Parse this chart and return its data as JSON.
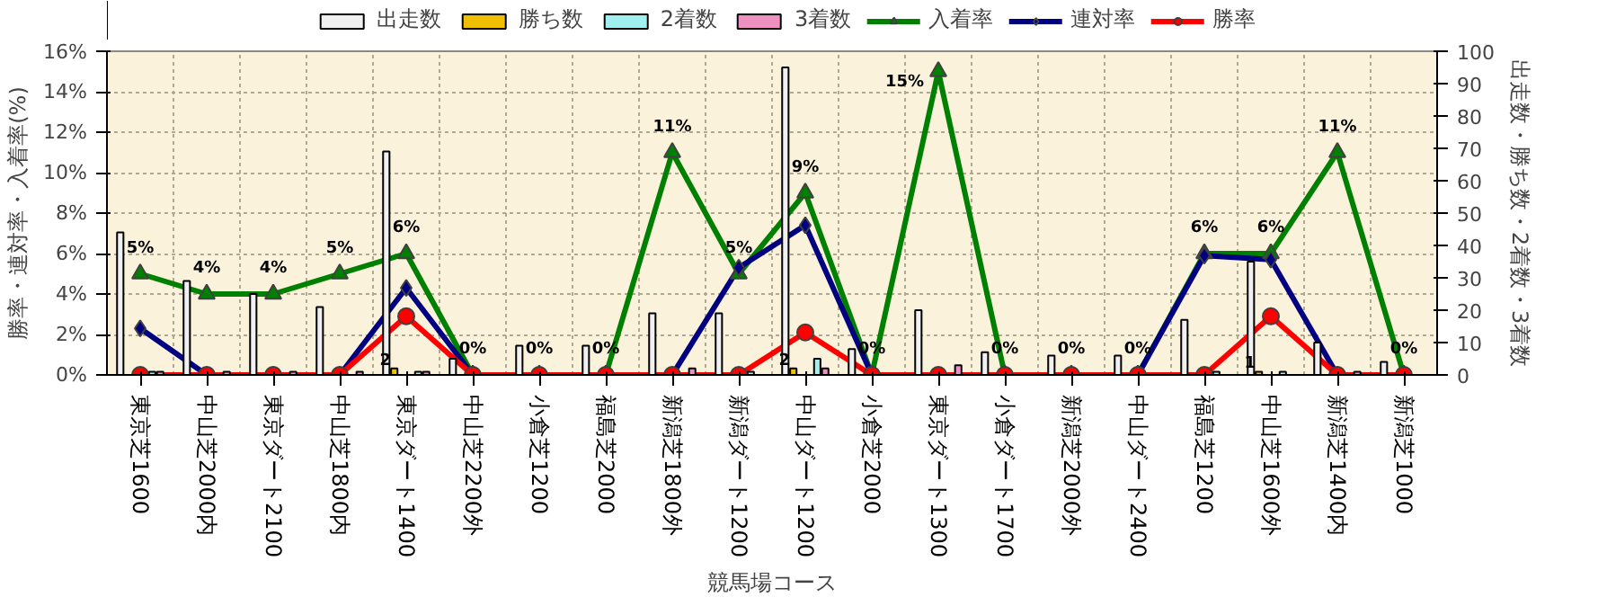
{
  "chart_data": {
    "type": "bar",
    "xlabel": "競馬場コース",
    "ylabel": "勝率・連対率・入着率(%)",
    "y2label": "出走数・勝ち数・2着数・3着数",
    "categories": [
      "東京芝1600",
      "中山芝2000内",
      "東京ダート2100",
      "中山芝1800内",
      "東京ダート1400",
      "中山芝2200外",
      "小倉芝1200",
      "福島芝2000",
      "新潟芝1800外",
      "新潟ダート1200",
      "中山ダート1200",
      "小倉芝2000",
      "東京ダート1300",
      "小倉ダート1700",
      "新潟芝2000外",
      "中山ダート2400",
      "福島芝1200",
      "中山芝1600外",
      "新潟芝1400内",
      "新潟芝1000"
    ],
    "series": [
      {
        "name": "出走数",
        "axis": "y2",
        "color": "#f0f0f0",
        "values": [
          44,
          29,
          25,
          21,
          69,
          5,
          9,
          9,
          19,
          19,
          95,
          8,
          20,
          7,
          6,
          6,
          17,
          35,
          10,
          4
        ]
      },
      {
        "name": "勝ち数",
        "axis": "y2",
        "color": "#f0c000",
        "values": [
          0,
          0,
          0,
          0,
          2,
          0,
          0,
          0,
          0,
          0,
          2,
          0,
          0,
          0,
          0,
          0,
          0,
          1,
          0,
          0
        ],
        "value_labels": [
          null,
          null,
          null,
          null,
          "2",
          null,
          null,
          null,
          null,
          null,
          "2",
          null,
          null,
          null,
          null,
          null,
          null,
          "1",
          null,
          null
        ]
      },
      {
        "name": "2着数",
        "axis": "y2",
        "color": "#a0f0f0",
        "values": [
          1,
          0,
          0,
          0,
          1,
          0,
          0,
          0,
          0,
          1,
          5,
          0,
          0,
          0,
          0,
          0,
          1,
          1,
          0,
          0
        ]
      },
      {
        "name": "3着数",
        "axis": "y2",
        "color": "#f090c0",
        "values": [
          1,
          1,
          1,
          1,
          1,
          0,
          0,
          0,
          2,
          0,
          2,
          0,
          3,
          0,
          0,
          0,
          0,
          0,
          1,
          0
        ]
      },
      {
        "name": "入着率",
        "type": "line",
        "color": "#008000",
        "marker": "triangle",
        "values": [
          5,
          4,
          4,
          5,
          6,
          0,
          0,
          0,
          11,
          5,
          9,
          0,
          15,
          0,
          0,
          0,
          6,
          6,
          11,
          0
        ],
        "value_labels": [
          "5%",
          "4%",
          "4%",
          "5%",
          "6%",
          "0%",
          "0%",
          "0%",
          "11%",
          "5%",
          "9%",
          "0%",
          "15%",
          "0%",
          "0%",
          "0%",
          "6%",
          "6%",
          "11%",
          "0%"
        ]
      },
      {
        "name": "連対率",
        "type": "line",
        "color": "#000080",
        "marker": "diamond",
        "values": [
          2.3,
          0,
          0,
          0,
          4.3,
          0,
          0,
          0,
          0,
          5.3,
          7.4,
          0,
          0,
          0,
          0,
          0,
          5.9,
          5.7,
          0,
          0
        ]
      },
      {
        "name": "勝率",
        "type": "line",
        "color": "#ff0000",
        "marker": "circle",
        "values": [
          0,
          0,
          0,
          0,
          2.9,
          0,
          0,
          0,
          0,
          0,
          2.1,
          0,
          0,
          0,
          0,
          0,
          0,
          2.9,
          0,
          0
        ]
      }
    ],
    "ylim": [
      0,
      16
    ],
    "yticks": [
      {
        "value": 0,
        "label": "0%"
      },
      {
        "value": 2,
        "label": "2%"
      },
      {
        "value": 4,
        "label": "4%"
      },
      {
        "value": 6,
        "label": "6%"
      },
      {
        "value": 8,
        "label": "8%"
      },
      {
        "value": 10,
        "label": "10%"
      },
      {
        "value": 12,
        "label": "12%"
      },
      {
        "value": 14,
        "label": "14%"
      },
      {
        "value": 16,
        "label": "16%"
      }
    ],
    "y2lim": [
      0,
      100
    ],
    "y2ticks": [
      0,
      10,
      20,
      30,
      40,
      50,
      60,
      70,
      80,
      90,
      100
    ],
    "grid": true,
    "legend": "top"
  }
}
